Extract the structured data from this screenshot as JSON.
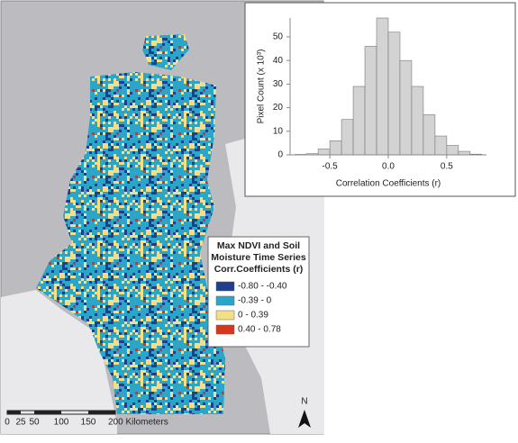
{
  "map": {
    "legend": {
      "title": [
        "Max NDVI and Soil",
        "Moisture Time Series",
        "Corr.Coefficients (r)"
      ],
      "items": [
        {
          "label": "-0.80 - -0.40",
          "color": "#1f3e8c"
        },
        {
          "label": "-0.39 - 0",
          "color": "#2ba6c8"
        },
        {
          "label": "0 - 0.39",
          "color": "#f4df86"
        },
        {
          "label": "0.40 - 0.78",
          "color": "#d8361c"
        }
      ]
    },
    "scale": [
      "0",
      "25",
      "50",
      "100",
      "150",
      "200 Kilometers"
    ],
    "north": "N"
  },
  "chart_data": {
    "type": "histogram",
    "color": "#d3d3d3",
    "xlabel": "Correlation Coefficients (r)",
    "ylabel": "Pixel Count (x 10³)",
    "bins": [
      -0.8,
      -0.7,
      -0.6,
      -0.5,
      -0.4,
      -0.3,
      -0.2,
      -0.1,
      0,
      0.1,
      0.2,
      0.3,
      0.4,
      0.5,
      0.6,
      0.7,
      0.8
    ],
    "values": [
      0.2,
      0.5,
      2.5,
      6,
      15,
      29,
      46,
      58,
      52,
      40,
      29,
      17,
      8,
      4,
      1.5,
      0.3
    ],
    "xlim": [
      -0.84,
      0.84
    ],
    "ylim": [
      0,
      58
    ],
    "xticks": [
      -0.5,
      {
        "value": 0,
        "label": "0.0"
      },
      0.5
    ],
    "yticks": [
      0,
      10,
      20,
      30,
      40,
      50
    ]
  }
}
